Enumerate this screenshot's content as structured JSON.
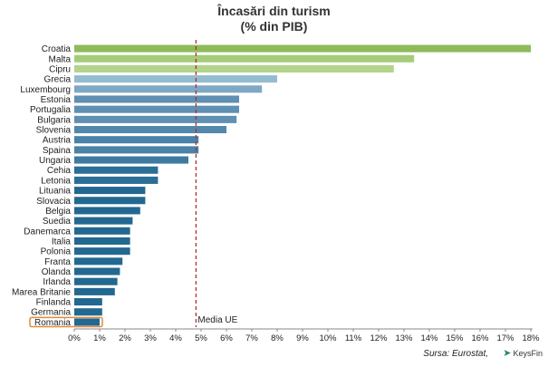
{
  "chart_data": {
    "type": "bar",
    "orientation": "horizontal",
    "title": "Încasări din turism",
    "subtitle": "(% din PIB)",
    "categories": [
      "Croatia",
      "Malta",
      "Cipru",
      "Grecia",
      "Luxembourg",
      "Estonia",
      "Portugalia",
      "Bulgaria",
      "Slovenia",
      "Austria",
      "Spaina",
      "Ungaria",
      "Cehia",
      "Letonia",
      "Lituania",
      "Slovacia",
      "Belgia",
      "Suedia",
      "Danemarca",
      "Italia",
      "Polonia",
      "Franta",
      "Olanda",
      "Irlanda",
      "Marea Britanie",
      "Finlanda",
      "Germania",
      "Romania"
    ],
    "values": [
      18.0,
      13.4,
      12.6,
      8.0,
      7.4,
      6.5,
      6.5,
      6.4,
      6.0,
      4.9,
      4.9,
      4.5,
      3.3,
      3.3,
      2.8,
      2.8,
      2.6,
      2.3,
      2.2,
      2.2,
      2.2,
      1.9,
      1.8,
      1.7,
      1.6,
      1.1,
      1.1,
      1.0
    ],
    "bar_colors": [
      "#8dbb5a",
      "#a5cc7a",
      "#b2d48a",
      "#94bcd0",
      "#7ea8c4",
      "#5f8fb2",
      "#5f8fb2",
      "#5f8fb2",
      "#5388ac",
      "#4b82a8",
      "#4b82a8",
      "#3f7aa2",
      "#2b6e96",
      "#2b6e96",
      "#236890",
      "#236890",
      "#236890",
      "#236890",
      "#236890",
      "#236890",
      "#236890",
      "#236890",
      "#236890",
      "#236890",
      "#236890",
      "#236890",
      "#236890",
      "#236890"
    ],
    "highlight_category": "Romania",
    "highlight_color": "#e08a3c",
    "xlim": [
      0,
      18
    ],
    "xticks": [
      "0%",
      "1%",
      "2%",
      "3%",
      "4%",
      "5%",
      "6%",
      "7%",
      "8%",
      "9%",
      "10%",
      "11%",
      "12%",
      "13%",
      "14%",
      "15%",
      "16%",
      "17%",
      "18%"
    ],
    "reference_line": {
      "label": "Media UE",
      "value": 4.8,
      "color": "#b03030"
    },
    "grid": false
  },
  "source": "Sursa: Eurostat,",
  "logo_text": "KeysFin"
}
